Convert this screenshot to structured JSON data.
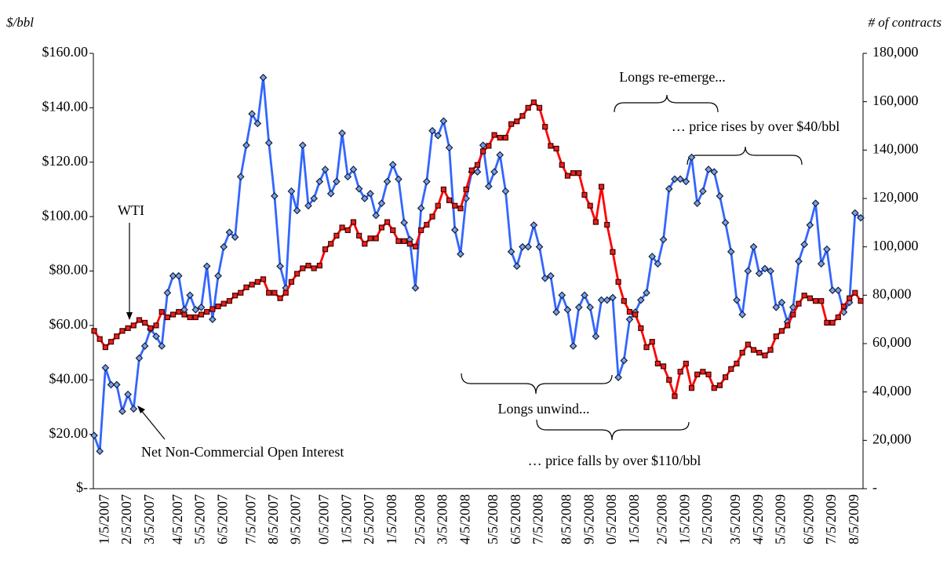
{
  "chart_data": {
    "type": "line",
    "y_label": "$/bbl",
    "y2_label": "# of contracts",
    "annotations": [
      "Longs re-emerge...",
      "… price rises by over $40/bbl",
      "Longs unwind...",
      "… price falls by over $110/bbl"
    ],
    "categories": [
      null,
      null,
      "1/5/2007",
      null,
      null,
      null,
      "2/5/2007",
      null,
      null,
      null,
      "3/5/2007",
      null,
      null,
      null,
      null,
      "4/5/2007",
      null,
      null,
      null,
      "5/5/2007",
      null,
      null,
      null,
      "6/5/2007",
      null,
      null,
      null,
      null,
      "7/5/2007",
      null,
      null,
      null,
      "8/5/2007",
      null,
      null,
      null,
      "9/5/2007",
      null,
      null,
      null,
      null,
      "0/5/2007",
      null,
      null,
      null,
      "1/5/2007",
      null,
      null,
      null,
      "2/5/2007",
      null,
      null,
      null,
      "1/5/2008",
      null,
      null,
      null,
      null,
      "2/5/2008",
      null,
      null,
      null,
      "3/5/2008",
      null,
      null,
      null,
      "4/5/2008",
      null,
      null,
      null,
      null,
      "5/5/2008",
      null,
      null,
      null,
      "6/5/2008",
      null,
      null,
      null,
      "7/5/2008",
      null,
      null,
      null,
      null,
      "8/5/2008",
      null,
      null,
      null,
      "9/5/2008",
      null,
      null,
      null,
      "0/5/2008",
      null,
      null,
      null,
      "1/5/2008",
      null,
      null,
      null,
      null,
      "2/5/2008",
      null,
      null,
      null,
      "1/5/2009",
      null,
      null,
      null,
      "2/5/2009",
      null,
      null,
      null,
      null,
      "3/5/2009",
      null,
      null,
      null,
      "4/5/2009",
      null,
      null,
      null,
      "5/5/2009",
      null,
      null,
      null,
      null,
      "6/5/2009",
      null,
      null,
      null,
      "7/5/2009",
      null,
      null,
      null,
      "8/5/2009",
      null
    ],
    "series": [
      {
        "name": "Net Non-Commercial Open Interest",
        "color": "#3366ff",
        "marker_color": "#7fa0e0",
        "axis": "y2",
        "values": [
          22000,
          15500,
          50000,
          43000,
          43000,
          32000,
          39000,
          33000,
          54000,
          59000,
          66000,
          63000,
          59000,
          81000,
          88000,
          88000,
          74000,
          80000,
          74000,
          75000,
          92000,
          70000,
          88000,
          100000,
          106000,
          104000,
          129000,
          142000,
          155000,
          151000,
          170000,
          143000,
          121000,
          92000,
          83000,
          123000,
          115000,
          142000,
          117000,
          120000,
          127000,
          132000,
          122000,
          127000,
          147000,
          129000,
          132000,
          124000,
          120000,
          122000,
          113000,
          118000,
          127000,
          134000,
          128000,
          110000,
          103000,
          83000,
          116000,
          127000,
          148000,
          146000,
          152000,
          141000,
          107000,
          97000,
          120000,
          131000,
          131000,
          142000,
          125000,
          131000,
          138000,
          123000,
          98000,
          92000,
          100000,
          100000,
          109000,
          100000,
          87000,
          88000,
          73000,
          80000,
          74000,
          59000,
          75000,
          80000,
          75000,
          63000,
          78000,
          78000,
          79000,
          46000,
          53000,
          70000,
          73000,
          78000,
          81000,
          96000,
          93000,
          103000,
          124000,
          128000,
          128000,
          127000,
          137000,
          118000,
          123000,
          132000,
          131000,
          121000,
          110000,
          98000,
          78000,
          72000,
          90000,
          100000,
          89000,
          91000,
          90000,
          75000,
          77000,
          69000,
          75000,
          94000,
          101000,
          109000,
          118000,
          93000,
          99000,
          82000,
          82000,
          73000,
          77000,
          114000,
          112000
        ]
      },
      {
        "name": "WTI",
        "color": "#ff0000",
        "marker_color": "#e8211c",
        "axis": "y",
        "values": [
          58,
          55,
          52,
          54,
          56,
          58,
          59,
          60,
          62,
          61,
          59,
          60,
          65,
          63,
          64,
          65,
          64,
          63,
          63,
          64,
          65,
          66,
          67,
          68,
          69,
          71,
          72,
          74,
          75,
          76,
          77,
          72,
          72,
          70,
          72,
          76,
          79,
          81,
          82,
          81,
          82,
          88,
          90,
          93,
          96,
          95,
          98,
          93,
          90,
          92,
          92,
          96,
          98,
          95,
          91,
          91,
          90,
          89,
          95,
          97,
          100,
          104,
          110,
          106,
          104,
          103,
          110,
          117,
          119,
          124,
          126,
          130,
          129,
          129,
          134,
          135,
          137,
          140,
          142,
          140,
          133,
          126,
          125,
          119,
          115,
          116,
          116,
          108,
          104,
          98,
          111,
          97,
          87,
          76,
          69,
          65,
          64,
          59,
          52,
          54,
          46,
          45,
          40,
          34,
          43,
          46,
          37,
          42,
          43,
          42,
          37,
          38,
          41,
          44,
          46,
          50,
          53,
          51,
          50,
          49,
          51,
          56,
          58,
          60,
          64,
          68,
          71,
          70,
          69,
          69,
          61,
          61,
          63,
          67,
          70,
          72,
          69
        ]
      }
    ],
    "ylim": [
      0,
      160
    ],
    "yticks": [
      {
        "value": 0,
        "label": "$-"
      },
      {
        "value": 20,
        "label": "$20.00"
      },
      {
        "value": 40,
        "label": "$40.00"
      },
      {
        "value": 60,
        "label": "$60.00"
      },
      {
        "value": 80,
        "label": "$80.00"
      },
      {
        "value": 100,
        "label": "$100.00"
      },
      {
        "value": 120,
        "label": "$120.00"
      },
      {
        "value": 140,
        "label": "$140.00"
      },
      {
        "value": 160,
        "label": "$160.00"
      }
    ],
    "y2lim": [
      0,
      180000
    ],
    "y2ticks": [
      {
        "value": 0,
        "label": "-"
      },
      {
        "value": 20000,
        "label": "20,000"
      },
      {
        "value": 40000,
        "label": "40,000"
      },
      {
        "value": 60000,
        "label": "60,000"
      },
      {
        "value": 80000,
        "label": "80,000"
      },
      {
        "value": 100000,
        "label": "100,000"
      },
      {
        "value": 120000,
        "label": "120,000"
      },
      {
        "value": 140000,
        "label": "140,000"
      },
      {
        "value": 160000,
        "label": "160,000"
      },
      {
        "value": 180000,
        "label": "180,000"
      }
    ],
    "grid": false
  }
}
